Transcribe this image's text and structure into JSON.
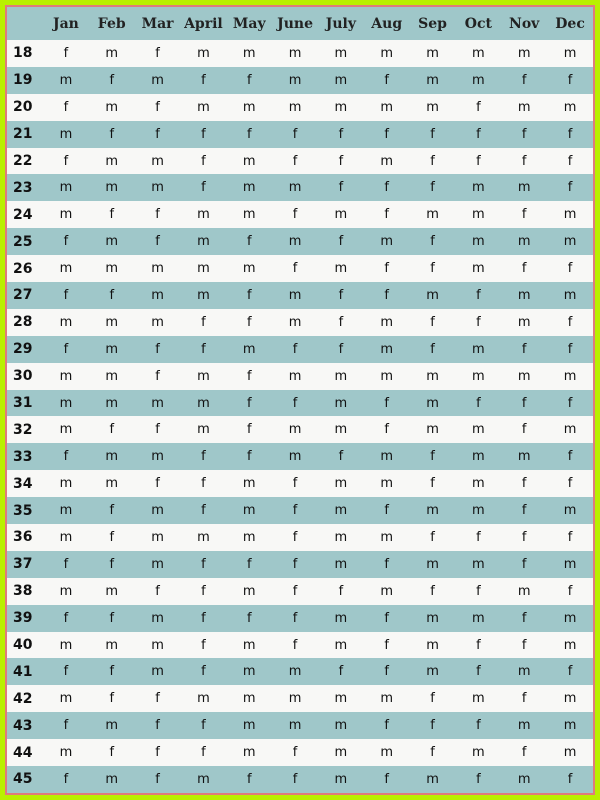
{
  "chart_data": {
    "type": "table",
    "columns": [
      "",
      "Jan",
      "Feb",
      "Mar",
      "April",
      "May",
      "June",
      "July",
      "Aug",
      "Sep",
      "Oct",
      "Nov",
      "Dec"
    ],
    "rows": [
      {
        "age": "18",
        "values": [
          "f",
          "m",
          "f",
          "m",
          "m",
          "m",
          "m",
          "m",
          "m",
          "m",
          "m",
          "m"
        ]
      },
      {
        "age": "19",
        "values": [
          "m",
          "f",
          "m",
          "f",
          "f",
          "m",
          "m",
          "f",
          "m",
          "m",
          "f",
          "f"
        ]
      },
      {
        "age": "20",
        "values": [
          "f",
          "m",
          "f",
          "m",
          "m",
          "m",
          "m",
          "m",
          "m",
          "f",
          "m",
          "m"
        ]
      },
      {
        "age": "21",
        "values": [
          "m",
          "f",
          "f",
          "f",
          "f",
          "f",
          "f",
          "f",
          "f",
          "f",
          "f",
          "f"
        ]
      },
      {
        "age": "22",
        "values": [
          "f",
          "m",
          "m",
          "f",
          "m",
          "f",
          "f",
          "m",
          "f",
          "f",
          "f",
          "f"
        ]
      },
      {
        "age": "23",
        "values": [
          "m",
          "m",
          "m",
          "f",
          "m",
          "m",
          "f",
          "f",
          "f",
          "m",
          "m",
          "f"
        ]
      },
      {
        "age": "24",
        "values": [
          "m",
          "f",
          "f",
          "m",
          "m",
          "f",
          "m",
          "f",
          "m",
          "m",
          "f",
          "m"
        ]
      },
      {
        "age": "25",
        "values": [
          "f",
          "m",
          "f",
          "m",
          "f",
          "m",
          "f",
          "m",
          "f",
          "m",
          "m",
          "m"
        ]
      },
      {
        "age": "26",
        "values": [
          "m",
          "m",
          "m",
          "m",
          "m",
          "f",
          "m",
          "f",
          "f",
          "m",
          "f",
          "f"
        ]
      },
      {
        "age": "27",
        "values": [
          "f",
          "f",
          "m",
          "m",
          "f",
          "m",
          "f",
          "f",
          "m",
          "f",
          "m",
          "m"
        ]
      },
      {
        "age": "28",
        "values": [
          "m",
          "m",
          "m",
          "f",
          "f",
          "m",
          "f",
          "m",
          "f",
          "f",
          "m",
          "f"
        ]
      },
      {
        "age": "29",
        "values": [
          "f",
          "m",
          "f",
          "f",
          "m",
          "f",
          "f",
          "m",
          "f",
          "m",
          "f",
          "f"
        ]
      },
      {
        "age": "30",
        "values": [
          "m",
          "m",
          "f",
          "m",
          "f",
          "m",
          "m",
          "m",
          "m",
          "m",
          "m",
          "m"
        ]
      },
      {
        "age": "31",
        "values": [
          "m",
          "m",
          "m",
          "m",
          "f",
          "f",
          "m",
          "f",
          "m",
          "f",
          "f",
          "f"
        ]
      },
      {
        "age": "32",
        "values": [
          "m",
          "f",
          "f",
          "m",
          "f",
          "m",
          "m",
          "f",
          "m",
          "m",
          "f",
          "m"
        ]
      },
      {
        "age": "33",
        "values": [
          "f",
          "m",
          "m",
          "f",
          "f",
          "m",
          "f",
          "m",
          "f",
          "m",
          "m",
          "f"
        ]
      },
      {
        "age": "34",
        "values": [
          "m",
          "m",
          "f",
          "f",
          "m",
          "f",
          "m",
          "m",
          "f",
          "m",
          "f",
          "f"
        ]
      },
      {
        "age": "35",
        "values": [
          "m",
          "f",
          "m",
          "f",
          "m",
          "f",
          "m",
          "f",
          "m",
          "m",
          "f",
          "m"
        ]
      },
      {
        "age": "36",
        "values": [
          "m",
          "f",
          "m",
          "m",
          "m",
          "f",
          "m",
          "m",
          "f",
          "f",
          "f",
          "f"
        ]
      },
      {
        "age": "37",
        "values": [
          "f",
          "f",
          "m",
          "f",
          "f",
          "f",
          "m",
          "f",
          "m",
          "m",
          "f",
          "m"
        ]
      },
      {
        "age": "38",
        "values": [
          "m",
          "m",
          "f",
          "f",
          "m",
          "f",
          "f",
          "m",
          "f",
          "f",
          "m",
          "f"
        ]
      },
      {
        "age": "39",
        "values": [
          "f",
          "f",
          "m",
          "f",
          "f",
          "f",
          "m",
          "f",
          "m",
          "m",
          "f",
          "m"
        ]
      },
      {
        "age": "40",
        "values": [
          "m",
          "m",
          "m",
          "f",
          "m",
          "f",
          "m",
          "f",
          "m",
          "f",
          "f",
          "m"
        ]
      },
      {
        "age": "41",
        "values": [
          "f",
          "f",
          "m",
          "f",
          "m",
          "m",
          "f",
          "f",
          "m",
          "f",
          "m",
          "f"
        ]
      },
      {
        "age": "42",
        "values": [
          "m",
          "f",
          "f",
          "m",
          "m",
          "m",
          "m",
          "m",
          "f",
          "m",
          "f",
          "m"
        ]
      },
      {
        "age": "43",
        "values": [
          "f",
          "m",
          "f",
          "f",
          "m",
          "m",
          "m",
          "f",
          "f",
          "f",
          "m",
          "m"
        ]
      },
      {
        "age": "44",
        "values": [
          "m",
          "f",
          "f",
          "f",
          "m",
          "f",
          "m",
          "m",
          "f",
          "m",
          "f",
          "m"
        ]
      },
      {
        "age": "45",
        "values": [
          "f",
          "m",
          "f",
          "m",
          "f",
          "f",
          "m",
          "f",
          "m",
          "f",
          "m",
          "f"
        ]
      }
    ]
  },
  "colors": {
    "outer_border": "#b9f000",
    "inner_border": "#e07b7b",
    "teal_stripe": "#9fc7c9",
    "white_stripe": "#f8f8f6"
  }
}
